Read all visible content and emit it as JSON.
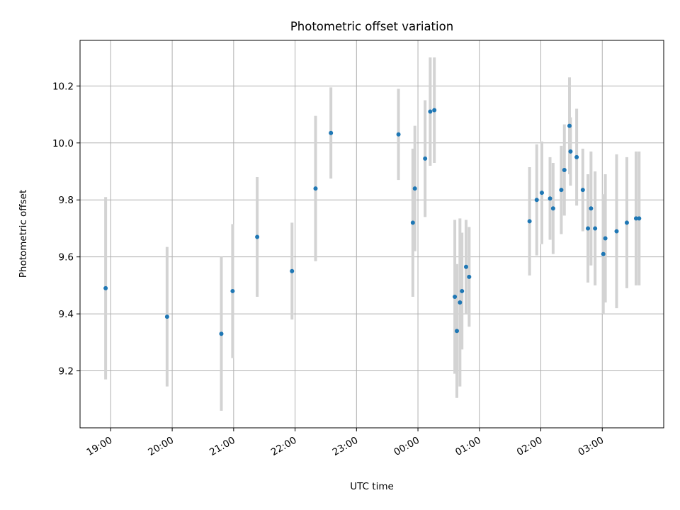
{
  "chart_data": {
    "type": "scatter",
    "title": "Photometric offset variation",
    "xlabel": "UTC time",
    "ylabel": "Photometric offset",
    "xlim": [
      "18:30",
      "04:00"
    ],
    "ylim": [
      9.0,
      10.36
    ],
    "grid": true,
    "xticks": [
      "19:00",
      "20:00",
      "21:00",
      "22:00",
      "23:00",
      "00:00",
      "01:00",
      "02:00",
      "03:00"
    ],
    "yticks": [
      "9.2",
      "9.4",
      "9.6",
      "9.8",
      "10.0",
      "10.2"
    ],
    "colors": {
      "point": "#1f77b4",
      "errorbar": "#d3d3d3"
    },
    "points": [
      {
        "t": "18:55",
        "y": 9.49,
        "err": 0.32
      },
      {
        "t": "19:55",
        "y": 9.39,
        "err": 0.245
      },
      {
        "t": "20:48",
        "y": 9.33,
        "err": 0.27
      },
      {
        "t": "20:59",
        "y": 9.48,
        "err": 0.235
      },
      {
        "t": "21:23",
        "y": 9.67,
        "err": 0.21
      },
      {
        "t": "21:57",
        "y": 9.55,
        "err": 0.17
      },
      {
        "t": "22:20",
        "y": 9.84,
        "err": 0.255
      },
      {
        "t": "22:35",
        "y": 10.035,
        "err": 0.16
      },
      {
        "t": "23:41",
        "y": 10.03,
        "err": 0.16
      },
      {
        "t": "23:55",
        "y": 9.72,
        "err": 0.26
      },
      {
        "t": "23:57",
        "y": 9.84,
        "err": 0.22
      },
      {
        "t": "00:07",
        "y": 9.945,
        "err": 0.205
      },
      {
        "t": "00:12",
        "y": 10.11,
        "err": 0.19
      },
      {
        "t": "00:16",
        "y": 10.115,
        "err": 0.185
      },
      {
        "t": "00:36",
        "y": 9.46,
        "err": 0.27
      },
      {
        "t": "00:38",
        "y": 9.34,
        "err": 0.235
      },
      {
        "t": "00:41",
        "y": 9.44,
        "err": 0.295
      },
      {
        "t": "00:43",
        "y": 9.48,
        "err": 0.205
      },
      {
        "t": "00:47",
        "y": 9.565,
        "err": 0.165
      },
      {
        "t": "00:50",
        "y": 9.53,
        "err": 0.175
      },
      {
        "t": "01:49",
        "y": 9.725,
        "err": 0.19
      },
      {
        "t": "01:56",
        "y": 9.8,
        "err": 0.195
      },
      {
        "t": "02:01",
        "y": 9.825,
        "err": 0.18
      },
      {
        "t": "02:09",
        "y": 9.805,
        "err": 0.145
      },
      {
        "t": "02:12",
        "y": 9.77,
        "err": 0.16
      },
      {
        "t": "02:20",
        "y": 9.835,
        "err": 0.155
      },
      {
        "t": "02:23",
        "y": 9.905,
        "err": 0.16
      },
      {
        "t": "02:28",
        "y": 10.06,
        "err": 0.17
      },
      {
        "t": "02:29",
        "y": 9.97,
        "err": 0.12
      },
      {
        "t": "02:35",
        "y": 9.95,
        "err": 0.17
      },
      {
        "t": "02:41",
        "y": 9.835,
        "err": 0.145
      },
      {
        "t": "02:46",
        "y": 9.7,
        "err": 0.19
      },
      {
        "t": "02:49",
        "y": 9.77,
        "err": 0.2
      },
      {
        "t": "02:53",
        "y": 9.7,
        "err": 0.2
      },
      {
        "t": "03:01",
        "y": 9.61,
        "err": 0.21
      },
      {
        "t": "03:03",
        "y": 9.665,
        "err": 0.225
      },
      {
        "t": "03:14",
        "y": 9.69,
        "err": 0.27
      },
      {
        "t": "03:24",
        "y": 9.72,
        "err": 0.23
      },
      {
        "t": "03:33",
        "y": 9.735,
        "err": 0.235
      },
      {
        "t": "03:36",
        "y": 9.735,
        "err": 0.235
      }
    ]
  }
}
